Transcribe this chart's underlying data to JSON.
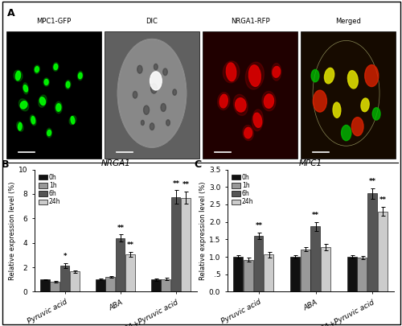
{
  "panel_B": {
    "title": "NRGA1",
    "ylabel": "Relative expression level (%)",
    "ylim": [
      0,
      10
    ],
    "yticks": [
      0,
      2,
      4,
      6,
      8,
      10
    ],
    "ytick_labels": [
      "0",
      "2",
      "4",
      "6",
      "8",
      "10"
    ],
    "groups": [
      "Pyruvic acid",
      "ABA",
      "ABA+Pyruvic acid"
    ],
    "time_labels": [
      "0h",
      "1h",
      "6h",
      "24h"
    ],
    "bar_colors": [
      "#111111",
      "#999999",
      "#555555",
      "#cccccc"
    ],
    "values": [
      [
        1.0,
        0.85,
        2.15,
        1.65
      ],
      [
        1.0,
        1.2,
        4.4,
        3.05
      ],
      [
        1.0,
        1.05,
        7.75,
        7.7
      ]
    ],
    "errors": [
      [
        0.05,
        0.07,
        0.18,
        0.12
      ],
      [
        0.07,
        0.08,
        0.28,
        0.2
      ],
      [
        0.08,
        0.07,
        0.55,
        0.5
      ]
    ],
    "sig_labels": [
      [
        "",
        "",
        "*",
        ""
      ],
      [
        "",
        "",
        "**",
        "**"
      ],
      [
        "",
        "",
        "**",
        "**"
      ]
    ]
  },
  "panel_C": {
    "title": "MPC1",
    "ylabel": "Relative expression level (%)",
    "ylim": [
      0,
      3.5
    ],
    "yticks": [
      0.0,
      0.5,
      1.0,
      1.5,
      2.0,
      2.5,
      3.0,
      3.5
    ],
    "ytick_labels": [
      "0.0",
      ".5",
      "1.0",
      "1.5",
      "2.0",
      "2.5",
      "3.0",
      "3.5"
    ],
    "groups": [
      "Pyruvic acid",
      "ABA",
      "ABA+Pyruvic acid"
    ],
    "time_labels": [
      "0h",
      "1h",
      "6h",
      "24h"
    ],
    "bar_colors": [
      "#111111",
      "#999999",
      "#555555",
      "#cccccc"
    ],
    "values": [
      [
        1.0,
        0.92,
        1.6,
        1.07
      ],
      [
        1.0,
        1.22,
        1.87,
        1.28
      ],
      [
        1.0,
        0.98,
        2.82,
        2.3
      ]
    ],
    "errors": [
      [
        0.04,
        0.05,
        0.1,
        0.08
      ],
      [
        0.05,
        0.06,
        0.12,
        0.09
      ],
      [
        0.05,
        0.04,
        0.15,
        0.13
      ]
    ],
    "sig_labels": [
      [
        "",
        "",
        "**",
        ""
      ],
      [
        "",
        "",
        "**",
        ""
      ],
      [
        "",
        "",
        "**",
        "**"
      ]
    ]
  },
  "panel_A_labels": [
    "MPC1-GFP",
    "DIC",
    "NRGA1-RFP",
    "Merged"
  ],
  "panel_A_bg_colors": [
    "#000000",
    "#606060",
    "#200000",
    "#150a00"
  ],
  "fig_label_A": "A",
  "fig_label_B": "B",
  "fig_label_C": "C",
  "figure_bg": "#ffffff",
  "border_color": "#000000"
}
